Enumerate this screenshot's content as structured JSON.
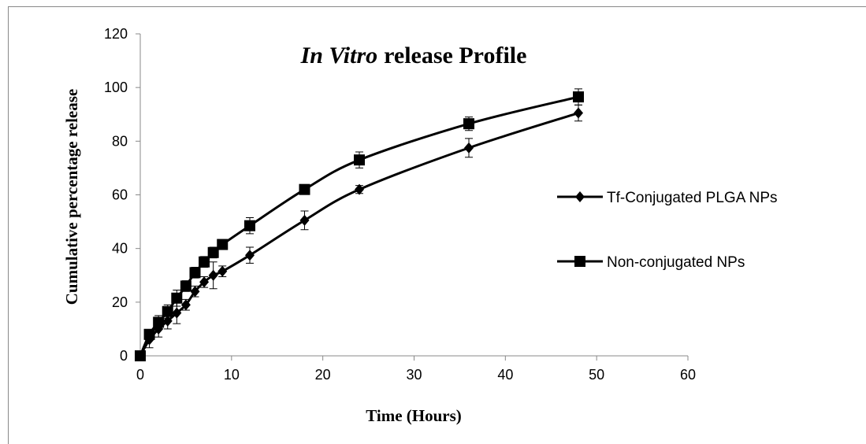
{
  "chart_data": {
    "type": "line",
    "title": [
      "In Vitro",
      "release Profile"
    ],
    "x_label": "Time (Hours)",
    "y_label": "Cumulative percentage release",
    "x": [
      0,
      1,
      2,
      3,
      4,
      5,
      6,
      7,
      8,
      9,
      12,
      18,
      24,
      36,
      48
    ],
    "series": [
      {
        "name": "Tf-Conjugated PLGA NPs",
        "color": "#000000",
        "marker": "diamond",
        "values": [
          0,
          6,
          10,
          13,
          16,
          19,
          24,
          27.5,
          30,
          31.5,
          37.5,
          50.5,
          62,
          77.5,
          90.5
        ],
        "errors": [
          1,
          3,
          3,
          3,
          4,
          2,
          2,
          2,
          5,
          2,
          3,
          3.5,
          1.5,
          3.5,
          3
        ]
      },
      {
        "name": "Non-conjugated NPs",
        "color": "#000000",
        "marker": "square",
        "values": [
          0,
          8,
          12.5,
          16.5,
          21.5,
          26,
          31,
          35,
          38.5,
          41.5,
          48.5,
          62,
          73,
          86.5,
          96.5
        ],
        "errors": [
          1,
          1.5,
          2.5,
          2.5,
          3,
          2,
          2,
          2,
          2,
          1.5,
          3,
          1.5,
          3,
          2.5,
          3
        ]
      }
    ],
    "xlim": [
      0,
      60
    ],
    "xticks": [
      0,
      10,
      20,
      30,
      40,
      50,
      60
    ],
    "ylim": [
      0,
      120
    ],
    "yticks": [
      0,
      20,
      40,
      60,
      80,
      100,
      120
    ],
    "grid": false,
    "legend": "right"
  }
}
